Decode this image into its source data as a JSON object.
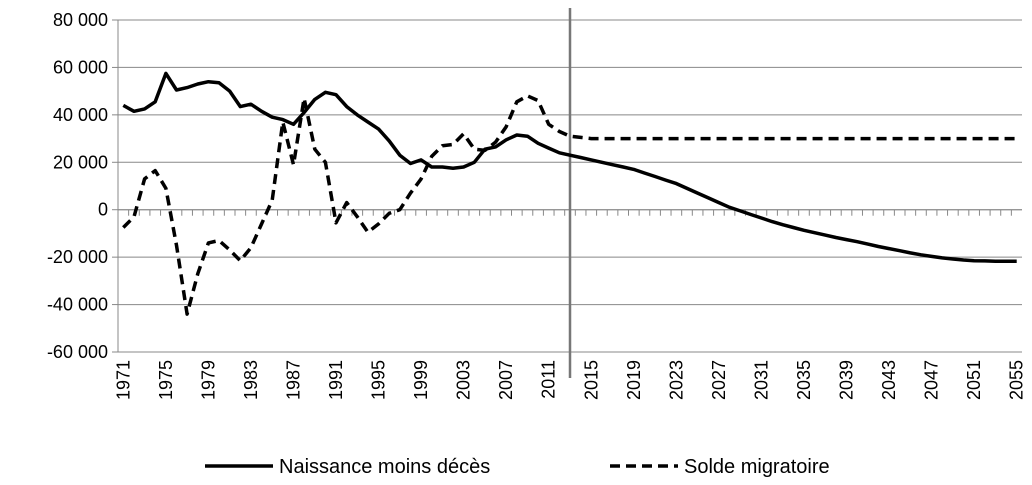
{
  "chart_data": {
    "type": "line",
    "x": [
      1971,
      1972,
      1973,
      1974,
      1975,
      1976,
      1977,
      1978,
      1979,
      1980,
      1981,
      1982,
      1983,
      1984,
      1985,
      1986,
      1987,
      1988,
      1989,
      1990,
      1991,
      1992,
      1993,
      1994,
      1995,
      1996,
      1997,
      1998,
      1999,
      2000,
      2001,
      2002,
      2003,
      2004,
      2005,
      2006,
      2007,
      2008,
      2009,
      2010,
      2011,
      2012,
      2013,
      2014,
      2015,
      2016,
      2017,
      2018,
      2019,
      2020,
      2021,
      2022,
      2023,
      2024,
      2025,
      2026,
      2027,
      2028,
      2029,
      2030,
      2031,
      2032,
      2033,
      2034,
      2035,
      2036,
      2037,
      2038,
      2039,
      2040,
      2041,
      2042,
      2043,
      2044,
      2045,
      2046,
      2047,
      2048,
      2049,
      2050,
      2051,
      2052,
      2053,
      2054,
      2055
    ],
    "series": [
      {
        "name": "Naissance moins décès",
        "color": "#000000",
        "dash": false,
        "values": [
          44000,
          41500,
          42500,
          45500,
          57500,
          50500,
          51500,
          53000,
          54000,
          53500,
          50000,
          43500,
          44500,
          41500,
          39000,
          38000,
          36000,
          41000,
          46500,
          49500,
          48500,
          43500,
          40000,
          37000,
          34000,
          29000,
          23000,
          19500,
          21000,
          18000,
          18000,
          17500,
          18000,
          20000,
          25500,
          26500,
          29500,
          31500,
          31000,
          28000,
          26000,
          24000,
          23000,
          22000,
          21000,
          20000,
          19000,
          18000,
          17000,
          15500,
          14000,
          12500,
          11000,
          9000,
          7000,
          5000,
          3000,
          1000,
          -500,
          -2000,
          -3500,
          -5000,
          -6300,
          -7500,
          -8700,
          -9700,
          -10700,
          -11700,
          -12600,
          -13500,
          -14500,
          -15500,
          -16400,
          -17300,
          -18200,
          -19000,
          -19700,
          -20300,
          -20800,
          -21200,
          -21500,
          -21600,
          -21700,
          -21700,
          -21700
        ]
      },
      {
        "name": "Solde migratoire",
        "color": "#000000",
        "dash": true,
        "values": [
          -7500,
          -3000,
          13000,
          16500,
          9000,
          -15000,
          -44000,
          -27000,
          -14000,
          -13000,
          -17000,
          -21500,
          -16000,
          -6000,
          4000,
          37000,
          19000,
          47000,
          25500,
          20000,
          -5500,
          3000,
          -3000,
          -9500,
          -6000,
          -1500,
          0,
          7000,
          13000,
          22500,
          27000,
          27500,
          32000,
          25500,
          25000,
          28500,
          35000,
          45500,
          48000,
          46000,
          36000,
          33000,
          31000,
          30500,
          30000,
          30000,
          30000,
          30000,
          30000,
          30000,
          30000,
          30000,
          30000,
          30000,
          30000,
          30000,
          30000,
          30000,
          30000,
          30000,
          30000,
          30000,
          30000,
          30000,
          30000,
          30000,
          30000,
          30000,
          30000,
          30000,
          30000,
          30000,
          30000,
          30000,
          30000,
          30000,
          30000,
          30000,
          30000,
          30000,
          30000,
          30000,
          30000,
          30000,
          30000
        ]
      }
    ],
    "xlim": [
      1970.5,
      2055.5
    ],
    "xticks": [
      1971,
      1975,
      1979,
      1983,
      1987,
      1991,
      1995,
      1999,
      2003,
      2007,
      2011,
      2015,
      2019,
      2023,
      2027,
      2031,
      2035,
      2039,
      2043,
      2047,
      2051,
      2055
    ],
    "ylim": [
      -60000,
      80000
    ],
    "yticks": [
      {
        "value": -60000,
        "label": "-60 000"
      },
      {
        "value": -40000,
        "label": "-40 000"
      },
      {
        "value": -20000,
        "label": "-20 000"
      },
      0,
      {
        "value": 20000,
        "label": "20 000"
      },
      {
        "value": 40000,
        "label": "40 000"
      },
      {
        "value": 60000,
        "label": "60 000"
      },
      {
        "value": 80000,
        "label": "80 000"
      }
    ],
    "grid": true,
    "reference_line_x": 2013,
    "legend": "bottom"
  }
}
